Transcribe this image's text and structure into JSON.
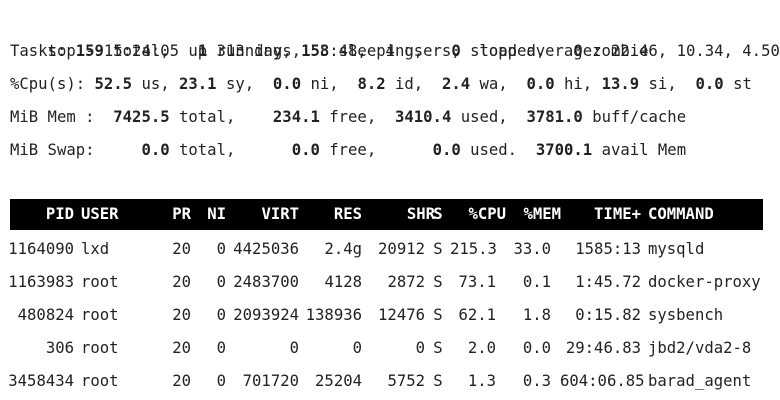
{
  "summary": {
    "uptime_line": "top - 15:24:05 up 313 days,  3:48,  4 users,  load average: 22.46, 10.34, 4.50",
    "tasks": {
      "label": "Tasks:",
      "total": "159",
      "total_label": "total,",
      "running": "1",
      "running_label": "running,",
      "sleeping": "158",
      "sleeping_label": "sleeping,",
      "stopped": "0",
      "stopped_label": "stopped,",
      "zombie": "0",
      "zombie_label": "zombie"
    },
    "cpu": {
      "label": "%Cpu(s):",
      "us": "52.5",
      "us_label": "us,",
      "sy": "23.1",
      "sy_label": "sy,",
      "ni": "0.0",
      "ni_label": "ni,",
      "id": "8.2",
      "id_label": "id,",
      "wa": "2.4",
      "wa_label": "wa,",
      "hi": "0.0",
      "hi_label": "hi,",
      "si": "13.9",
      "si_label": "si,",
      "st": "0.0",
      "st_label": "st"
    },
    "mem": {
      "label": "MiB Mem :",
      "total": "7425.5",
      "total_label": "total,",
      "free": "234.1",
      "free_label": "free,",
      "used": "3410.4",
      "used_label": "used,",
      "cache": "3781.0",
      "cache_label": "buff/cache"
    },
    "swap": {
      "label": "MiB Swap:",
      "total": "0.0",
      "total_label": "total,",
      "free": "0.0",
      "free_label": "free,",
      "used": "0.0",
      "used_label": "used.",
      "avail": "3700.1",
      "avail_label": "avail Mem"
    }
  },
  "table": {
    "columns": {
      "pid": "PID",
      "user": "USER",
      "pr": "PR",
      "ni": "NI",
      "virt": "VIRT",
      "res": "RES",
      "shr": "SHR",
      "s": "S",
      "cpu": "%CPU",
      "mem": "%MEM",
      "time": "TIME+",
      "command": "COMMAND"
    },
    "rows": [
      {
        "pid": "1164090",
        "user": "lxd",
        "pr": "20",
        "ni": "0",
        "virt": "4425036",
        "res": "2.4g",
        "shr": "20912",
        "s": "S",
        "cpu": "215.3",
        "mem": "33.0",
        "time": "1585:13",
        "command": "mysqld"
      },
      {
        "pid": "1163983",
        "user": "root",
        "pr": "20",
        "ni": "0",
        "virt": "2483700",
        "res": "4128",
        "shr": "2872",
        "s": "S",
        "cpu": "73.1",
        "mem": "0.1",
        "time": "1:45.72",
        "command": "docker-proxy"
      },
      {
        "pid": "480824",
        "user": "root",
        "pr": "20",
        "ni": "0",
        "virt": "2093924",
        "res": "138936",
        "shr": "12476",
        "s": "S",
        "cpu": "62.1",
        "mem": "1.8",
        "time": "0:15.82",
        "command": "sysbench"
      },
      {
        "pid": "306",
        "user": "root",
        "pr": "20",
        "ni": "0",
        "virt": "0",
        "res": "0",
        "shr": "0",
        "s": "S",
        "cpu": "2.0",
        "mem": "0.0",
        "time": "29:46.83",
        "command": "jbd2/vda2-8"
      },
      {
        "pid": "3458434",
        "user": "root",
        "pr": "20",
        "ni": "0",
        "virt": "701720",
        "res": "25204",
        "shr": "5752",
        "s": "S",
        "cpu": "1.3",
        "mem": "0.3",
        "time": "604:06.85",
        "command": "barad_agent"
      }
    ]
  }
}
